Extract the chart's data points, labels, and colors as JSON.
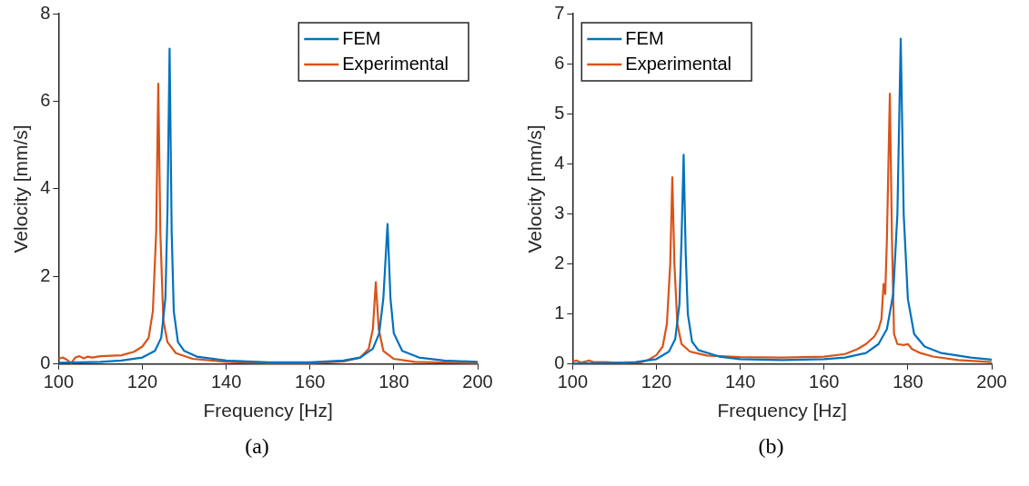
{
  "chart_data": [
    {
      "type": "line",
      "xlabel": "Frequency [Hz]",
      "ylabel": "Velocity [mm/s]",
      "xlim": [
        100,
        200
      ],
      "xticks": [
        100,
        120,
        140,
        160,
        180,
        200
      ],
      "ylim": [
        0,
        8
      ],
      "yticks": [
        0,
        2,
        4,
        6,
        8
      ],
      "legend": "top right",
      "annotations": [
        "(a)"
      ],
      "series": [
        {
          "name": "FEM",
          "color": "#0072bd",
          "x": [
            100,
            110,
            115,
            120,
            123,
            124.5,
            125.5,
            126,
            126.5,
            127,
            127.5,
            128.5,
            130,
            133,
            140,
            150,
            160,
            168,
            172,
            175,
            176.5,
            177.5,
            178.5,
            179.2,
            180,
            182,
            186,
            192,
            200
          ],
          "values": [
            0.03,
            0.05,
            0.08,
            0.15,
            0.3,
            0.6,
            1.5,
            3.5,
            7.2,
            3.0,
            1.2,
            0.5,
            0.3,
            0.17,
            0.08,
            0.04,
            0.04,
            0.08,
            0.15,
            0.35,
            0.7,
            1.5,
            3.2,
            1.5,
            0.7,
            0.3,
            0.15,
            0.08,
            0.05
          ]
        },
        {
          "name": "Experimental",
          "color": "#d95319",
          "x": [
            100,
            101,
            102,
            103,
            104,
            105,
            106,
            107,
            108,
            110,
            115,
            118,
            120,
            121.5,
            122.5,
            123.3,
            123.8,
            124.3,
            125,
            126,
            128,
            132,
            140,
            150,
            160,
            168,
            172,
            174,
            175,
            175.7,
            176.4,
            177.5,
            180,
            185,
            200
          ],
          "values": [
            0.12,
            0.15,
            0.1,
            0.02,
            0.15,
            0.18,
            0.13,
            0.17,
            0.15,
            0.18,
            0.2,
            0.28,
            0.4,
            0.6,
            1.2,
            3.0,
            6.4,
            3.0,
            1.0,
            0.5,
            0.25,
            0.12,
            0.05,
            0.02,
            0.02,
            0.06,
            0.15,
            0.35,
            0.8,
            1.87,
            0.8,
            0.3,
            0.12,
            0.05,
            0.02
          ]
        }
      ]
    },
    {
      "type": "line",
      "xlabel": "Frequency [Hz]",
      "ylabel": "Velocity [mm/s]",
      "xlim": [
        100,
        200
      ],
      "xticks": [
        100,
        120,
        140,
        160,
        180,
        200
      ],
      "ylim": [
        0,
        7
      ],
      "yticks": [
        0,
        1,
        2,
        3,
        4,
        5,
        6,
        7
      ],
      "legend": "top left",
      "annotations": [
        "(b)"
      ],
      "series": [
        {
          "name": "FEM",
          "color": "#0072bd",
          "x": [
            100,
            110,
            115,
            120,
            123,
            124.5,
            125.5,
            126,
            126.5,
            127,
            127.5,
            128.5,
            130,
            135,
            140,
            150,
            160,
            165,
            170,
            173,
            175,
            176.5,
            177.5,
            178.3,
            179,
            180,
            181.5,
            184,
            188,
            195,
            200
          ],
          "values": [
            0.01,
            0.02,
            0.04,
            0.1,
            0.25,
            0.5,
            1.2,
            2.5,
            4.18,
            2.2,
            1.0,
            0.45,
            0.28,
            0.15,
            0.1,
            0.08,
            0.1,
            0.13,
            0.22,
            0.4,
            0.7,
            1.4,
            3.0,
            6.5,
            3.0,
            1.3,
            0.6,
            0.35,
            0.22,
            0.13,
            0.09
          ]
        },
        {
          "name": "Experimental",
          "color": "#d95319",
          "x": [
            100,
            101,
            102,
            103,
            104,
            105,
            108,
            112,
            116,
            118,
            120,
            121.5,
            122.5,
            123.3,
            123.8,
            124.3,
            125,
            126,
            128,
            132,
            140,
            150,
            160,
            165,
            168,
            170,
            172,
            173,
            173.7,
            174.2,
            174.6,
            175,
            175.7,
            176.2,
            176.7,
            177.5,
            179,
            180,
            181,
            183,
            186,
            192,
            200
          ],
          "values": [
            0.05,
            0.07,
            0.03,
            0.05,
            0.07,
            0.04,
            0.04,
            0.02,
            0.03,
            0.08,
            0.18,
            0.35,
            0.8,
            2.0,
            3.73,
            2.0,
            0.8,
            0.4,
            0.25,
            0.17,
            0.14,
            0.13,
            0.15,
            0.2,
            0.3,
            0.4,
            0.55,
            0.7,
            0.9,
            1.6,
            1.4,
            2.5,
            5.4,
            2.5,
            0.6,
            0.4,
            0.38,
            0.4,
            0.3,
            0.22,
            0.15,
            0.08,
            0.04
          ]
        }
      ]
    }
  ]
}
